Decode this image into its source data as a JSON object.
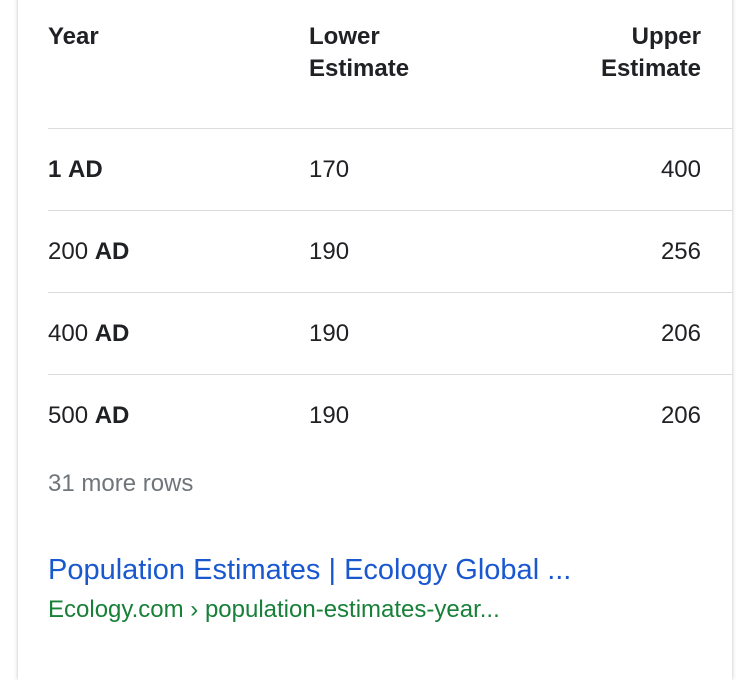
{
  "table": {
    "header": [
      "Year",
      "Lower Estimate",
      "Upper Estimate"
    ],
    "rows": [
      {
        "year": [
          "1",
          "AD"
        ],
        "lower": 170,
        "upper": 400
      },
      {
        "year": [
          "200",
          "AD"
        ],
        "lower": 190,
        "upper": 256
      },
      {
        "year": [
          "400",
          "AD"
        ],
        "lower": 190,
        "upper": 206
      },
      {
        "year": [
          "500",
          "AD"
        ],
        "lower": 190,
        "upper": 206
      }
    ],
    "more": "31 more rows"
  },
  "result": {
    "title": "Population Estimates | Ecology Global ...",
    "url": "Ecology.com › population-estimates-year..."
  }
}
